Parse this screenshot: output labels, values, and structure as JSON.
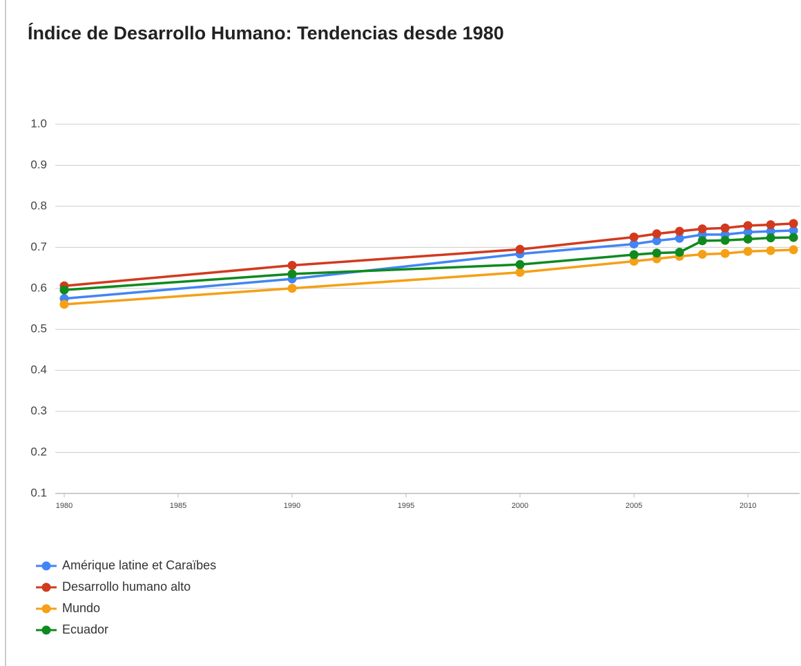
{
  "chart_data": {
    "type": "line",
    "title": "Índice de Desarrollo Humano: Tendencias desde 1980",
    "x": [
      1980,
      1990,
      2000,
      2005,
      2006,
      2007,
      2008,
      2009,
      2010,
      2011,
      2012
    ],
    "series": [
      {
        "name": "Amérique latine et Caraïbes",
        "color": "#4285f4",
        "values": [
          0.575,
          0.623,
          0.684,
          0.708,
          0.716,
          0.722,
          0.731,
          0.731,
          0.737,
          0.739,
          0.741
        ]
      },
      {
        "name": "Desarrollo humano alto",
        "color": "#d23a1e",
        "values": [
          0.606,
          0.656,
          0.695,
          0.725,
          0.733,
          0.739,
          0.745,
          0.747,
          0.753,
          0.755,
          0.758
        ]
      },
      {
        "name": "Mundo",
        "color": "#f5a016",
        "values": [
          0.561,
          0.6,
          0.639,
          0.666,
          0.672,
          0.678,
          0.683,
          0.685,
          0.69,
          0.692,
          0.694
        ]
      },
      {
        "name": "Ecuador",
        "color": "#0f8a1f",
        "values": [
          0.596,
          0.635,
          0.658,
          0.682,
          0.686,
          0.688,
          0.716,
          0.717,
          0.72,
          0.723,
          0.724
        ]
      }
    ],
    "xlim": [
      1980,
      2012.3
    ],
    "xticks": [
      1980,
      1985,
      1990,
      1995,
      2000,
      2005,
      2010
    ],
    "ylim": [
      0.1,
      1.0
    ],
    "yticks": [
      0.1,
      0.2,
      0.3,
      0.4,
      0.5,
      0.6,
      0.7,
      0.8,
      0.9,
      {
        "value": 1,
        "label": "1.0"
      }
    ],
    "grid": true,
    "legend": "bottom-left"
  }
}
